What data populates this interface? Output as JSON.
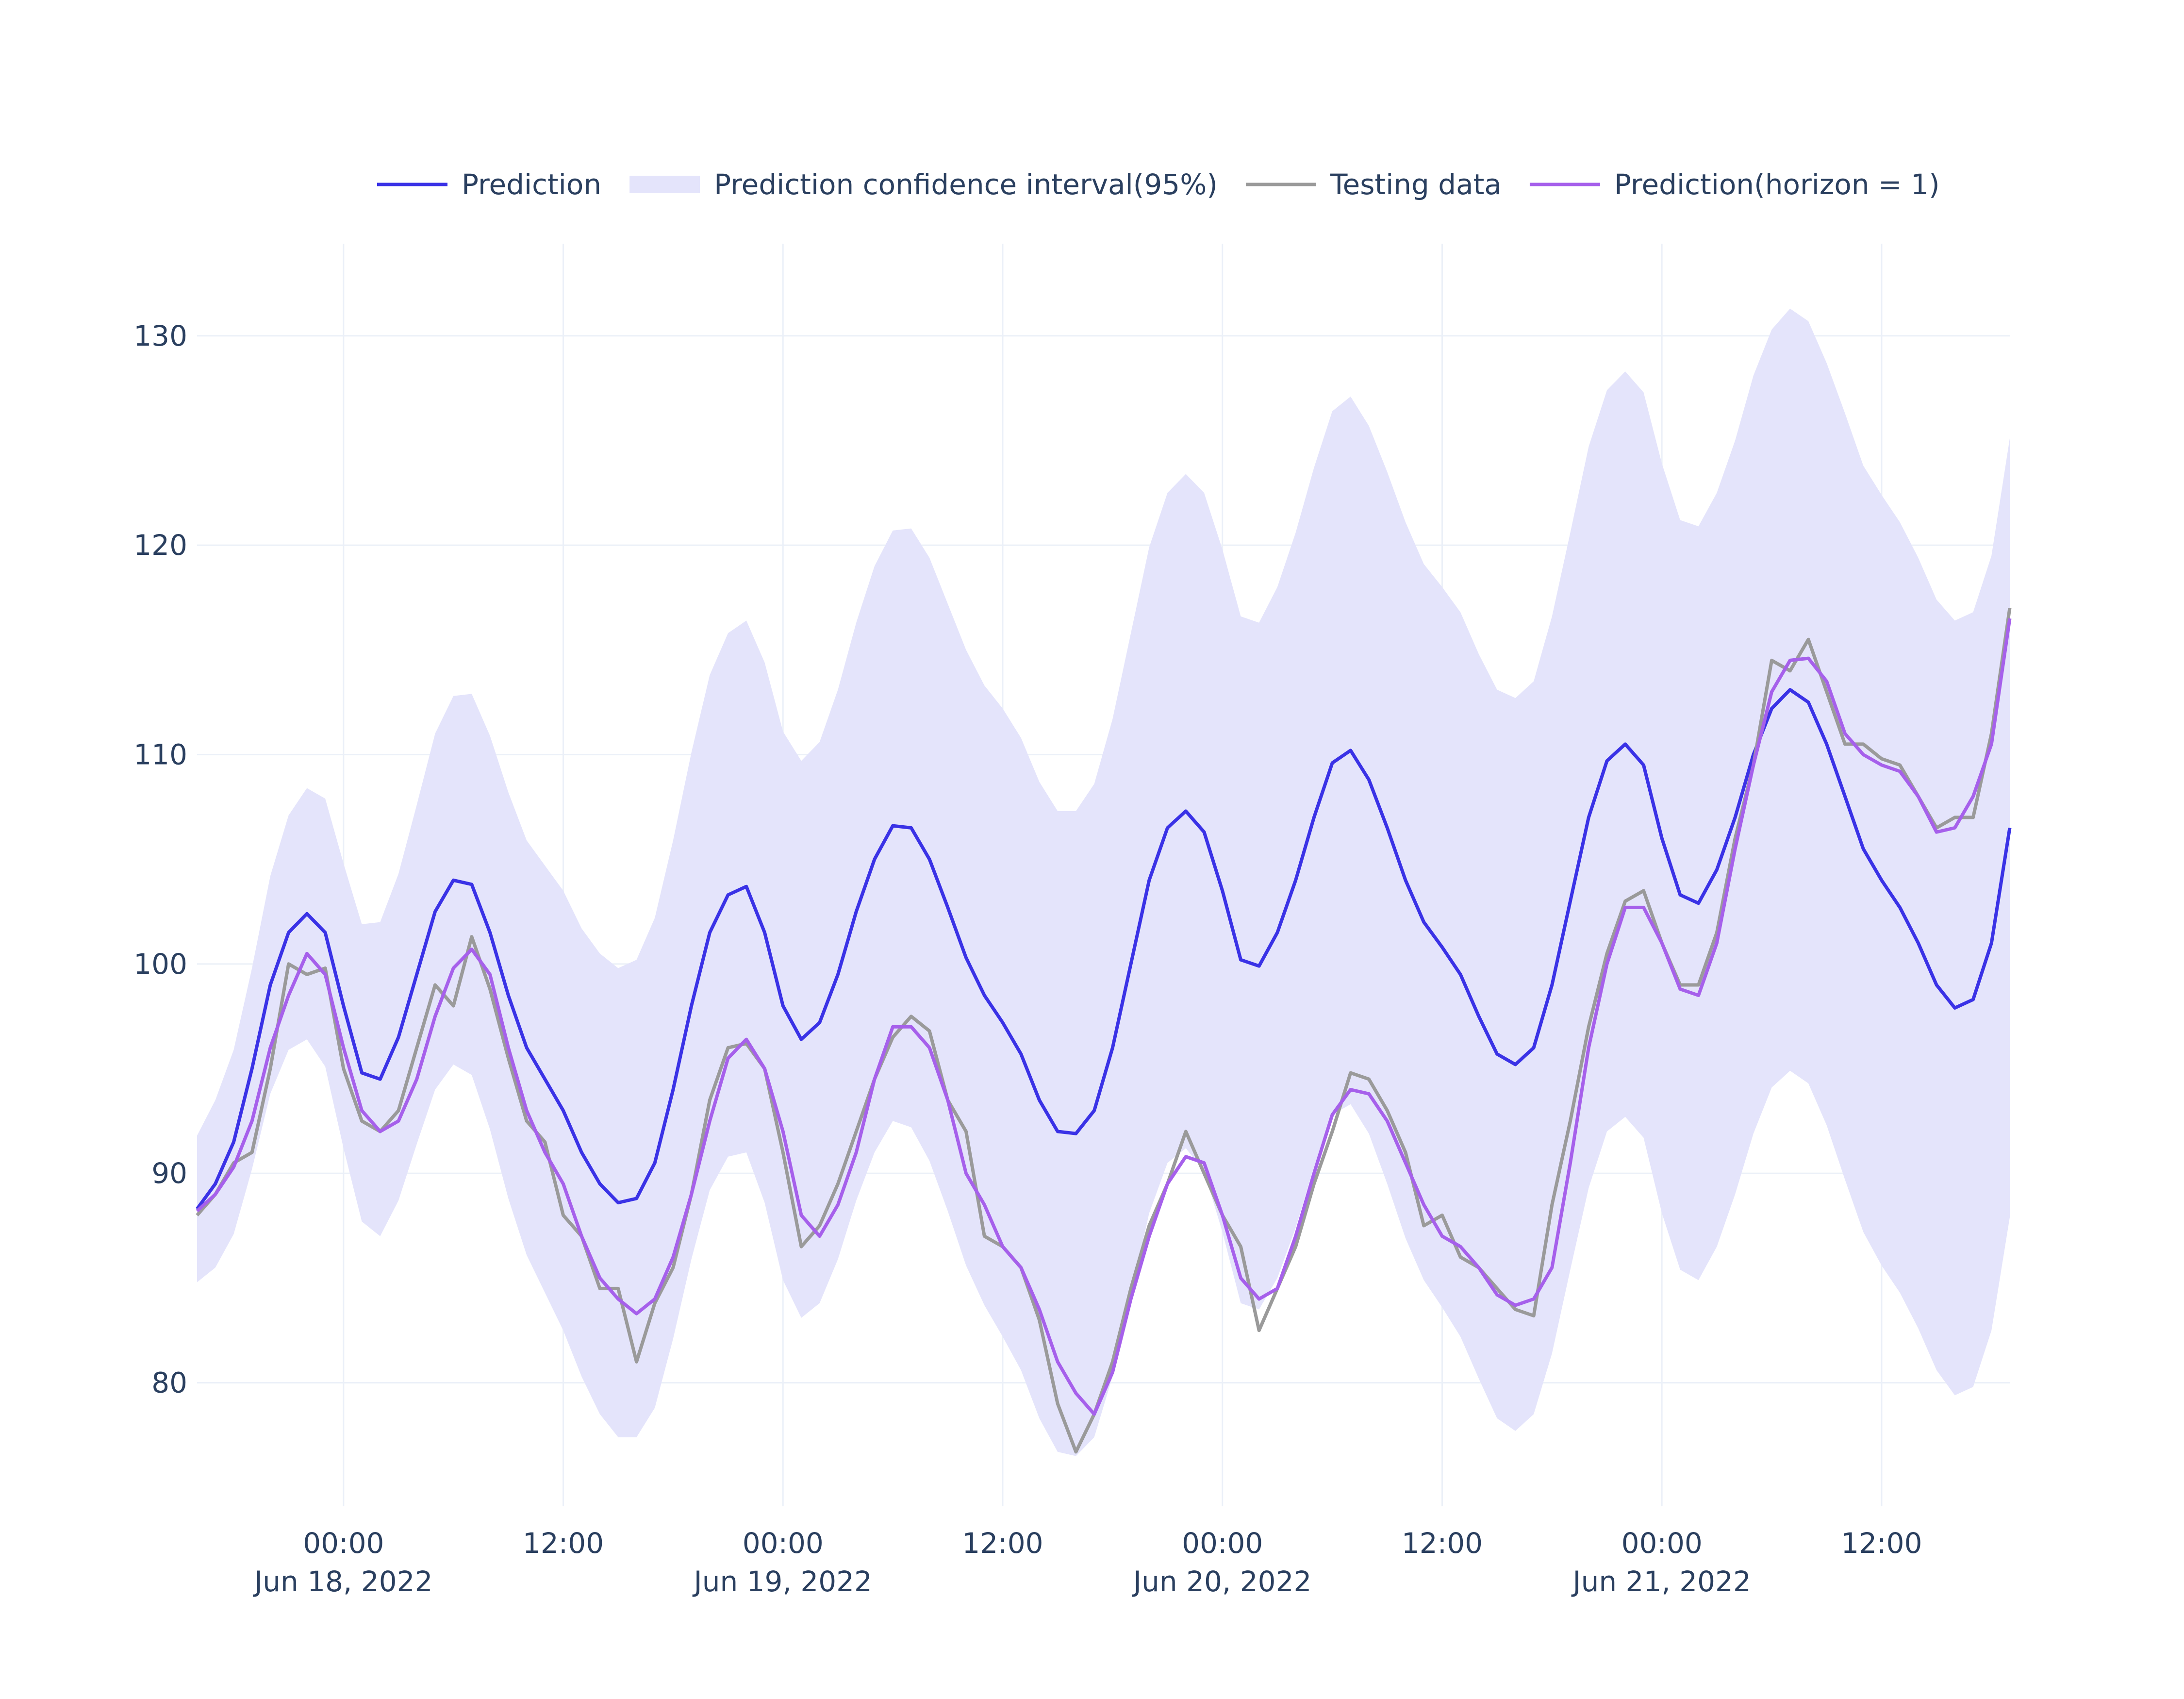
{
  "chart_data": {
    "type": "line",
    "x": [
      "2022-06-17T16:00",
      "2022-06-17T17:00",
      "2022-06-17T18:00",
      "2022-06-17T19:00",
      "2022-06-17T20:00",
      "2022-06-17T21:00",
      "2022-06-17T22:00",
      "2022-06-17T23:00",
      "2022-06-18T00:00",
      "2022-06-18T01:00",
      "2022-06-18T02:00",
      "2022-06-18T03:00",
      "2022-06-18T04:00",
      "2022-06-18T05:00",
      "2022-06-18T06:00",
      "2022-06-18T07:00",
      "2022-06-18T08:00",
      "2022-06-18T09:00",
      "2022-06-18T10:00",
      "2022-06-18T11:00",
      "2022-06-18T12:00",
      "2022-06-18T13:00",
      "2022-06-18T14:00",
      "2022-06-18T15:00",
      "2022-06-18T16:00",
      "2022-06-18T17:00",
      "2022-06-18T18:00",
      "2022-06-18T19:00",
      "2022-06-18T20:00",
      "2022-06-18T21:00",
      "2022-06-18T22:00",
      "2022-06-18T23:00",
      "2022-06-19T00:00",
      "2022-06-19T01:00",
      "2022-06-19T02:00",
      "2022-06-19T03:00",
      "2022-06-19T04:00",
      "2022-06-19T05:00",
      "2022-06-19T06:00",
      "2022-06-19T07:00",
      "2022-06-19T08:00",
      "2022-06-19T09:00",
      "2022-06-19T10:00",
      "2022-06-19T11:00",
      "2022-06-19T12:00",
      "2022-06-19T13:00",
      "2022-06-19T14:00",
      "2022-06-19T15:00",
      "2022-06-19T16:00",
      "2022-06-19T17:00",
      "2022-06-19T18:00",
      "2022-06-19T19:00",
      "2022-06-19T20:00",
      "2022-06-19T21:00",
      "2022-06-19T22:00",
      "2022-06-19T23:00",
      "2022-06-20T00:00",
      "2022-06-20T01:00",
      "2022-06-20T02:00",
      "2022-06-20T03:00",
      "2022-06-20T04:00",
      "2022-06-20T05:00",
      "2022-06-20T06:00",
      "2022-06-20T07:00",
      "2022-06-20T08:00",
      "2022-06-20T09:00",
      "2022-06-20T10:00",
      "2022-06-20T11:00",
      "2022-06-20T12:00",
      "2022-06-20T13:00",
      "2022-06-20T14:00",
      "2022-06-20T15:00",
      "2022-06-20T16:00",
      "2022-06-20T17:00",
      "2022-06-20T18:00",
      "2022-06-20T19:00",
      "2022-06-20T20:00",
      "2022-06-20T21:00",
      "2022-06-20T22:00",
      "2022-06-20T23:00",
      "2022-06-21T00:00",
      "2022-06-21T01:00",
      "2022-06-21T02:00",
      "2022-06-21T03:00",
      "2022-06-21T04:00",
      "2022-06-21T05:00",
      "2022-06-21T06:00",
      "2022-06-21T07:00",
      "2022-06-21T08:00",
      "2022-06-21T09:00",
      "2022-06-21T10:00",
      "2022-06-21T11:00",
      "2022-06-21T12:00",
      "2022-06-21T13:00",
      "2022-06-21T14:00",
      "2022-06-21T15:00",
      "2022-06-21T16:00",
      "2022-06-21T17:00",
      "2022-06-21T18:00",
      "2022-06-21T19:00"
    ],
    "series": [
      {
        "name": "Prediction",
        "color": "#3a32e6",
        "values": [
          88.3,
          89.5,
          91.5,
          95,
          99,
          101.5,
          102.4,
          101.5,
          98,
          94.8,
          94.5,
          96.5,
          99.5,
          102.5,
          104,
          103.8,
          101.5,
          98.5,
          96,
          94.5,
          93,
          91,
          89.5,
          88.6,
          88.8,
          90.5,
          94,
          98,
          101.5,
          103.3,
          103.7,
          101.5,
          98,
          96.4,
          97.2,
          99.5,
          102.5,
          105,
          106.6,
          106.5,
          105,
          102.7,
          100.3,
          98.5,
          97.2,
          95.7,
          93.5,
          92,
          91.9,
          93,
          96,
          100,
          104,
          106.5,
          107.3,
          106.3,
          103.5,
          100.2,
          99.9,
          101.5,
          104,
          107,
          109.6,
          110.2,
          108.8,
          106.5,
          104,
          102,
          100.8,
          99.5,
          97.5,
          95.7,
          95.2,
          96,
          99,
          103,
          107,
          109.7,
          110.5,
          109.5,
          106,
          103.3,
          102.9,
          104.5,
          107,
          110,
          112.2,
          113.1,
          112.5,
          110.5,
          108,
          105.5,
          104,
          102.7,
          101,
          99,
          97.9,
          98.3,
          101,
          106.5
        ]
      },
      {
        "name": "Prediction confidence interval(95%)",
        "color": "#e4e4fb",
        "upper": [
          91.8,
          93.5,
          95.9,
          99.8,
          104.2,
          107.1,
          108.4,
          107.9,
          104.8,
          101.9,
          102,
          104.3,
          107.6,
          111,
          112.8,
          112.9,
          110.9,
          108.2,
          105.9,
          104.7,
          103.5,
          101.7,
          100.5,
          99.8,
          100.2,
          102.2,
          105.9,
          110.1,
          113.8,
          115.8,
          116.4,
          114.4,
          111.1,
          109.7,
          110.6,
          113.1,
          116.3,
          119,
          120.7,
          120.8,
          119.4,
          117.2,
          115,
          113.3,
          112.2,
          110.8,
          108.7,
          107.3,
          107.3,
          108.6,
          111.7,
          115.8,
          119.9,
          122.5,
          123.4,
          122.5,
          119.8,
          116.6,
          116.3,
          118,
          120.6,
          123.7,
          126.4,
          127.1,
          125.7,
          123.5,
          121.1,
          119.1,
          118,
          116.8,
          114.8,
          113.1,
          112.7,
          113.5,
          116.6,
          120.6,
          124.7,
          127.4,
          128.3,
          127.3,
          123.9,
          121.2,
          120.9,
          122.5,
          125,
          128.1,
          130.3,
          131.3,
          130.7,
          128.7,
          126.3,
          123.8,
          122.4,
          121.1,
          119.4,
          117.4,
          116.4,
          116.8,
          119.5,
          125.1
        ],
        "lower": [
          84.8,
          85.5,
          87.1,
          90.2,
          93.8,
          95.9,
          96.4,
          95.1,
          91.2,
          87.7,
          87,
          88.7,
          91.4,
          94,
          95.2,
          94.7,
          92.1,
          88.8,
          86.1,
          84.3,
          82.5,
          80.3,
          78.5,
          77.4,
          77.4,
          78.8,
          82.1,
          85.9,
          89.2,
          90.8,
          91,
          88.6,
          84.9,
          83.1,
          83.8,
          85.9,
          88.7,
          91,
          92.5,
          92.2,
          90.6,
          88.2,
          85.6,
          83.7,
          82.2,
          80.6,
          78.3,
          76.7,
          76.5,
          77.4,
          80.3,
          84.2,
          88.1,
          90.5,
          91.2,
          90.1,
          87.2,
          83.8,
          83.5,
          85,
          87.4,
          90.3,
          92.8,
          93.3,
          91.9,
          89.5,
          86.9,
          84.9,
          83.6,
          82.2,
          80.2,
          78.3,
          77.7,
          78.5,
          81.4,
          85.4,
          89.3,
          92,
          92.7,
          91.7,
          88.1,
          85.4,
          84.9,
          86.5,
          89,
          91.9,
          94.1,
          94.9,
          94.3,
          92.3,
          89.7,
          87.2,
          85.6,
          84.3,
          82.6,
          80.6,
          79.4,
          79.8,
          82.5,
          87.9
        ]
      },
      {
        "name": "Testing data",
        "color": "#9a9a9a",
        "values": [
          88,
          89,
          90.5,
          91,
          95,
          100,
          99.5,
          99.8,
          95,
          92.5,
          92,
          93,
          96,
          99,
          98,
          101.3,
          98.8,
          95.5,
          92.5,
          91.5,
          88,
          87,
          84.5,
          84.5,
          81,
          83.8,
          85.5,
          89,
          93.5,
          96,
          96.2,
          95,
          91,
          86.5,
          87.5,
          89.5,
          92,
          94.5,
          96.5,
          97.5,
          96.8,
          93.5,
          92,
          87,
          86.5,
          85.5,
          83,
          79,
          76.7,
          78.5,
          81,
          84.5,
          87.5,
          89.5,
          92,
          90,
          88,
          86.5,
          82.5,
          84.5,
          86.5,
          89.5,
          92,
          94.8,
          94.5,
          93,
          91,
          87.5,
          88,
          86,
          85.5,
          84.5,
          83.5,
          83.2,
          88.5,
          92.5,
          97,
          100.5,
          103,
          103.5,
          101,
          99,
          99,
          101.5,
          106,
          109.5,
          114.5,
          114,
          115.5,
          113,
          110.5,
          110.5,
          109.8,
          109.5,
          108,
          106.5,
          107,
          107,
          111,
          117
        ]
      },
      {
        "name": "Prediction(horizon = 1)",
        "color": "#a660eb",
        "values": [
          88.2,
          89,
          90.3,
          92.5,
          96,
          98.5,
          100.5,
          99.5,
          96,
          93,
          92,
          92.5,
          94.5,
          97.5,
          99.8,
          100.7,
          99.5,
          96,
          93,
          91,
          89.5,
          87,
          85,
          84,
          83.3,
          84,
          86,
          89,
          92.5,
          95.5,
          96.4,
          95,
          92,
          88,
          87,
          88.5,
          91,
          94.5,
          97,
          97,
          96,
          93.5,
          90,
          88.5,
          86.5,
          85.5,
          83.5,
          81,
          79.5,
          78.5,
          80.5,
          84,
          87,
          89.5,
          90.8,
          90.5,
          88,
          85,
          84,
          84.5,
          87,
          90,
          92.8,
          94,
          93.8,
          92.5,
          90.5,
          88.5,
          87,
          86.5,
          85.5,
          84.2,
          83.7,
          84,
          85.5,
          90.5,
          96,
          100,
          102.7,
          102.7,
          101,
          98.8,
          98.5,
          101,
          105.5,
          109.5,
          113,
          114.5,
          114.6,
          113.5,
          111,
          110,
          109.5,
          109.2,
          108,
          106.3,
          106.5,
          108,
          110.5,
          116.5
        ]
      }
    ],
    "xlim": [
      "2022-06-17T16:00",
      "2022-06-21T19:00"
    ],
    "xticks": [
      {
        "value": "2022-06-18T00:00",
        "label": "00:00\nJun 18, 2022"
      },
      {
        "value": "2022-06-18T12:00",
        "label": "12:00"
      },
      {
        "value": "2022-06-19T00:00",
        "label": "00:00\nJun 19, 2022"
      },
      {
        "value": "2022-06-19T12:00",
        "label": "12:00"
      },
      {
        "value": "2022-06-20T00:00",
        "label": "00:00\nJun 20, 2022"
      },
      {
        "value": "2022-06-20T12:00",
        "label": "12:00"
      },
      {
        "value": "2022-06-21T00:00",
        "label": "00:00\nJun 21, 2022"
      },
      {
        "value": "2022-06-21T12:00",
        "label": "12:00"
      }
    ],
    "ylim": [
      74.1,
      134.4
    ],
    "yticks": [
      80,
      90,
      100,
      110,
      120,
      130
    ],
    "grid": true,
    "legend": "top"
  }
}
